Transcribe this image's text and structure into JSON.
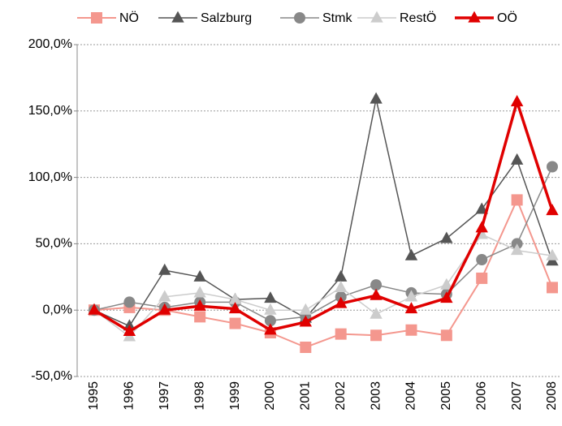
{
  "chart_data": {
    "type": "line",
    "categories": [
      "1995",
      "1996",
      "1997",
      "1998",
      "1999",
      "2000",
      "2001",
      "2002",
      "2003",
      "2004",
      "2005",
      "2006",
      "2007",
      "2008"
    ],
    "series": [
      {
        "name": "NÖ",
        "color": "#f4978e",
        "marker": "square",
        "line_width": 2,
        "values": [
          0,
          2,
          0,
          -5,
          -10,
          -17,
          -28,
          -18,
          -19,
          -15,
          -19,
          24,
          83,
          17
        ]
      },
      {
        "name": "Salzburg",
        "color": "#555555",
        "marker": "triangle",
        "line_width": 1.5,
        "values": [
          0,
          -12,
          30,
          25,
          8,
          9,
          -6,
          25,
          159,
          41,
          54,
          76,
          113,
          37
        ]
      },
      {
        "name": "Stmk",
        "color": "#888888",
        "marker": "circle",
        "line_width": 1.5,
        "values": [
          0,
          6,
          2,
          6,
          6,
          -8,
          -5,
          10,
          19,
          13,
          12,
          38,
          50,
          108
        ]
      },
      {
        "name": "RestÖ",
        "color": "#cccccc",
        "marker": "triangle",
        "line_width": 1.5,
        "values": [
          0,
          -20,
          10,
          13,
          8,
          0,
          0,
          17,
          -3,
          10,
          19,
          57,
          45,
          41
        ]
      },
      {
        "name": "OÖ",
        "color": "#e00000",
        "marker": "triangle",
        "line_width": 3.5,
        "values": [
          0,
          -16,
          0,
          3,
          1,
          -15,
          -9,
          5,
          11,
          1,
          9,
          62,
          157,
          75
        ]
      }
    ],
    "ylim": [
      -50,
      200
    ],
    "yticks": [
      {
        "value": -50,
        "label": "-50,0%"
      },
      {
        "value": 0,
        "label": "0,0%"
      },
      {
        "value": 50,
        "label": "50,0%"
      },
      {
        "value": 100,
        "label": "100,0%"
      },
      {
        "value": 150,
        "label": "150,0%"
      },
      {
        "value": 200,
        "label": "200,0%"
      }
    ],
    "grid": true,
    "legend": "top"
  }
}
